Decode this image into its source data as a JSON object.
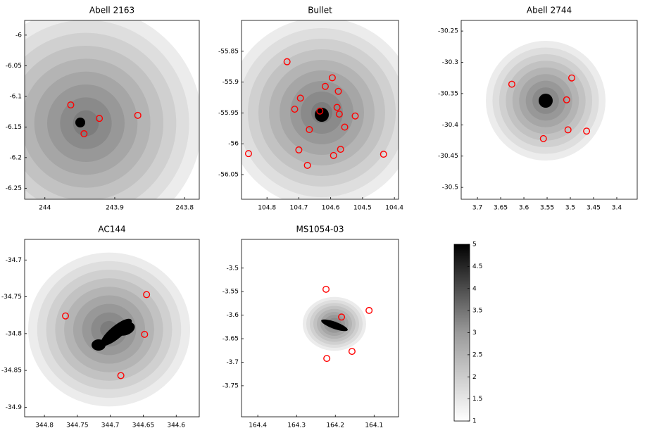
{
  "chart_data": [
    {
      "type": "scatter",
      "title": "Abell 2163",
      "color": "#ff0000",
      "x": [
        243.963,
        243.922,
        243.867,
        243.944
      ],
      "values": [
        -6.114,
        -6.136,
        -6.131,
        -6.161
      ],
      "xlim": [
        244.029,
        243.779
      ],
      "ylim": [
        -5.976,
        -6.268
      ],
      "xticks": [
        244,
        243.9,
        243.8
      ],
      "yticks": [
        -6,
        -6.05,
        -6.1,
        -6.15,
        -6.2,
        -6.25
      ]
    },
    {
      "type": "scatter",
      "title": "Bullet",
      "color": "#ff0000",
      "x": [
        104.737,
        104.595,
        104.617,
        104.695,
        104.576,
        104.713,
        104.634,
        104.58,
        104.573,
        104.523,
        104.556,
        104.667,
        104.7,
        104.569,
        104.591,
        104.858,
        104.434,
        104.673
      ],
      "values": [
        -55.867,
        -55.893,
        -55.907,
        -55.926,
        -55.915,
        -55.944,
        -55.947,
        -55.941,
        -55.952,
        -55.955,
        -55.973,
        -55.977,
        -56.01,
        -56.009,
        -56.019,
        -56.016,
        -56.017,
        -56.035
      ],
      "xlim": [
        104.88,
        104.387
      ],
      "ylim": [
        -55.8,
        -56.09
      ],
      "xticks": [
        104.8,
        104.7,
        104.6,
        104.5,
        104.4
      ],
      "yticks": [
        -55.85,
        -55.9,
        -55.95,
        -56,
        -56.05
      ]
    },
    {
      "type": "scatter",
      "title": "Abell 2744",
      "color": "#ff0000",
      "x": [
        3.626,
        3.497,
        3.508,
        3.505,
        3.465,
        3.558
      ],
      "values": [
        -30.335,
        -30.325,
        -30.36,
        -30.408,
        -30.41,
        -30.422
      ],
      "xlim": [
        3.735,
        3.356
      ],
      "ylim": [
        -30.233,
        -30.519
      ],
      "xticks": [
        3.7,
        3.65,
        3.6,
        3.55,
        3.5,
        3.45,
        3.4
      ],
      "yticks": [
        -30.25,
        -30.3,
        -30.35,
        -30.4,
        -30.45,
        -30.5
      ]
    },
    {
      "type": "scatter",
      "title": "AC144",
      "color": "#ff0000",
      "x": [
        344.768,
        344.645,
        344.648,
        344.684
      ],
      "values": [
        -34.776,
        -34.747,
        -34.801,
        -34.857
      ],
      "xlim": [
        344.83,
        344.565
      ],
      "ylim": [
        -34.672,
        -34.913
      ],
      "xticks": [
        344.8,
        344.75,
        344.7,
        344.65,
        344.6
      ],
      "yticks": [
        -34.7,
        -34.75,
        -34.8,
        -34.85,
        -34.9
      ]
    },
    {
      "type": "scatter",
      "title": "MS1054-03",
      "color": "#ff0000",
      "x": [
        164.224,
        164.184,
        164.113,
        164.157,
        164.222
      ],
      "values": [
        -3.545,
        -3.604,
        -3.59,
        -3.677,
        -3.692
      ],
      "xlim": [
        164.442,
        164.037
      ],
      "ylim": [
        -3.439,
        -3.816
      ],
      "xticks": [
        164.4,
        164.3,
        164.2,
        164.1
      ],
      "yticks": [
        -3.5,
        -3.55,
        -3.6,
        -3.65,
        -3.7,
        -3.75
      ]
    },
    {
      "type": "colorbar",
      "ylim": [
        1,
        5
      ],
      "yticks": [
        1,
        1.5,
        2,
        2.5,
        3,
        3.5,
        4,
        4.5,
        5
      ]
    }
  ]
}
